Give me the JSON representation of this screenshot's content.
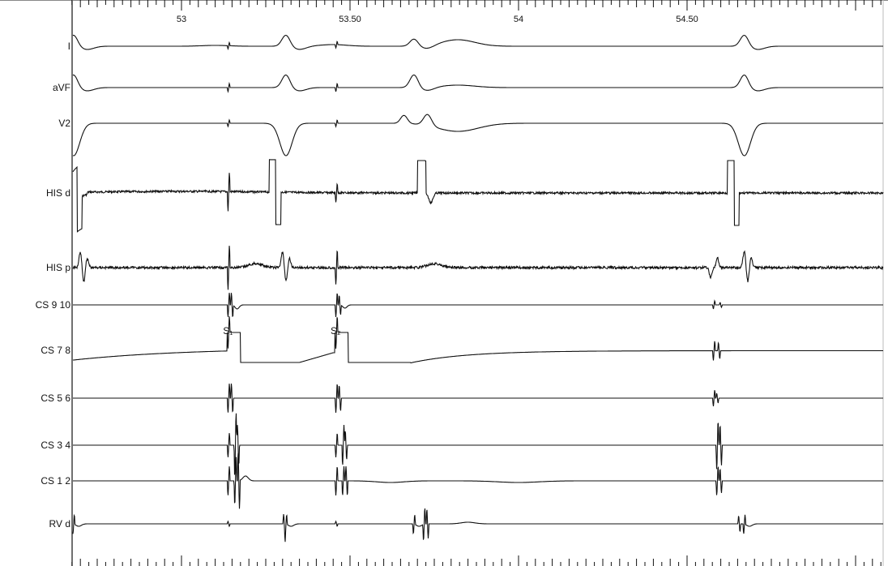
{
  "chart_data": {
    "type": "line",
    "title": "",
    "xlabel": "",
    "ylabel": "",
    "xlim": [
      52.66,
      55.08
    ],
    "x_tick_labels": [
      "53",
      "53.50",
      "54",
      "54.50"
    ],
    "x_ticks": [
      53,
      53.5,
      54,
      54.5
    ],
    "minor_tick_step": 0.025,
    "grid": false,
    "channels": [
      {
        "name": "I"
      },
      {
        "name": "aVF"
      },
      {
        "name": "V2"
      },
      {
        "name": "HIS d"
      },
      {
        "name": "HIS p"
      },
      {
        "name": "CS 9 10"
      },
      {
        "name": "CS 7 8"
      },
      {
        "name": "CS 5 6"
      },
      {
        "name": "CS 3 4"
      },
      {
        "name": "CS 1 2"
      },
      {
        "name": "RV d"
      }
    ],
    "annotations": [
      {
        "text": "S₁",
        "x": 53.14,
        "channel": "CS 7 8"
      },
      {
        "text": "S₂",
        "x": 53.46,
        "channel": "CS 7 8"
      }
    ],
    "qrs_times": [
      52.68,
      53.31,
      53.69,
      54.67
    ],
    "pacing_stimuli": [
      53.14,
      53.46
    ],
    "line_color": "#111111"
  }
}
